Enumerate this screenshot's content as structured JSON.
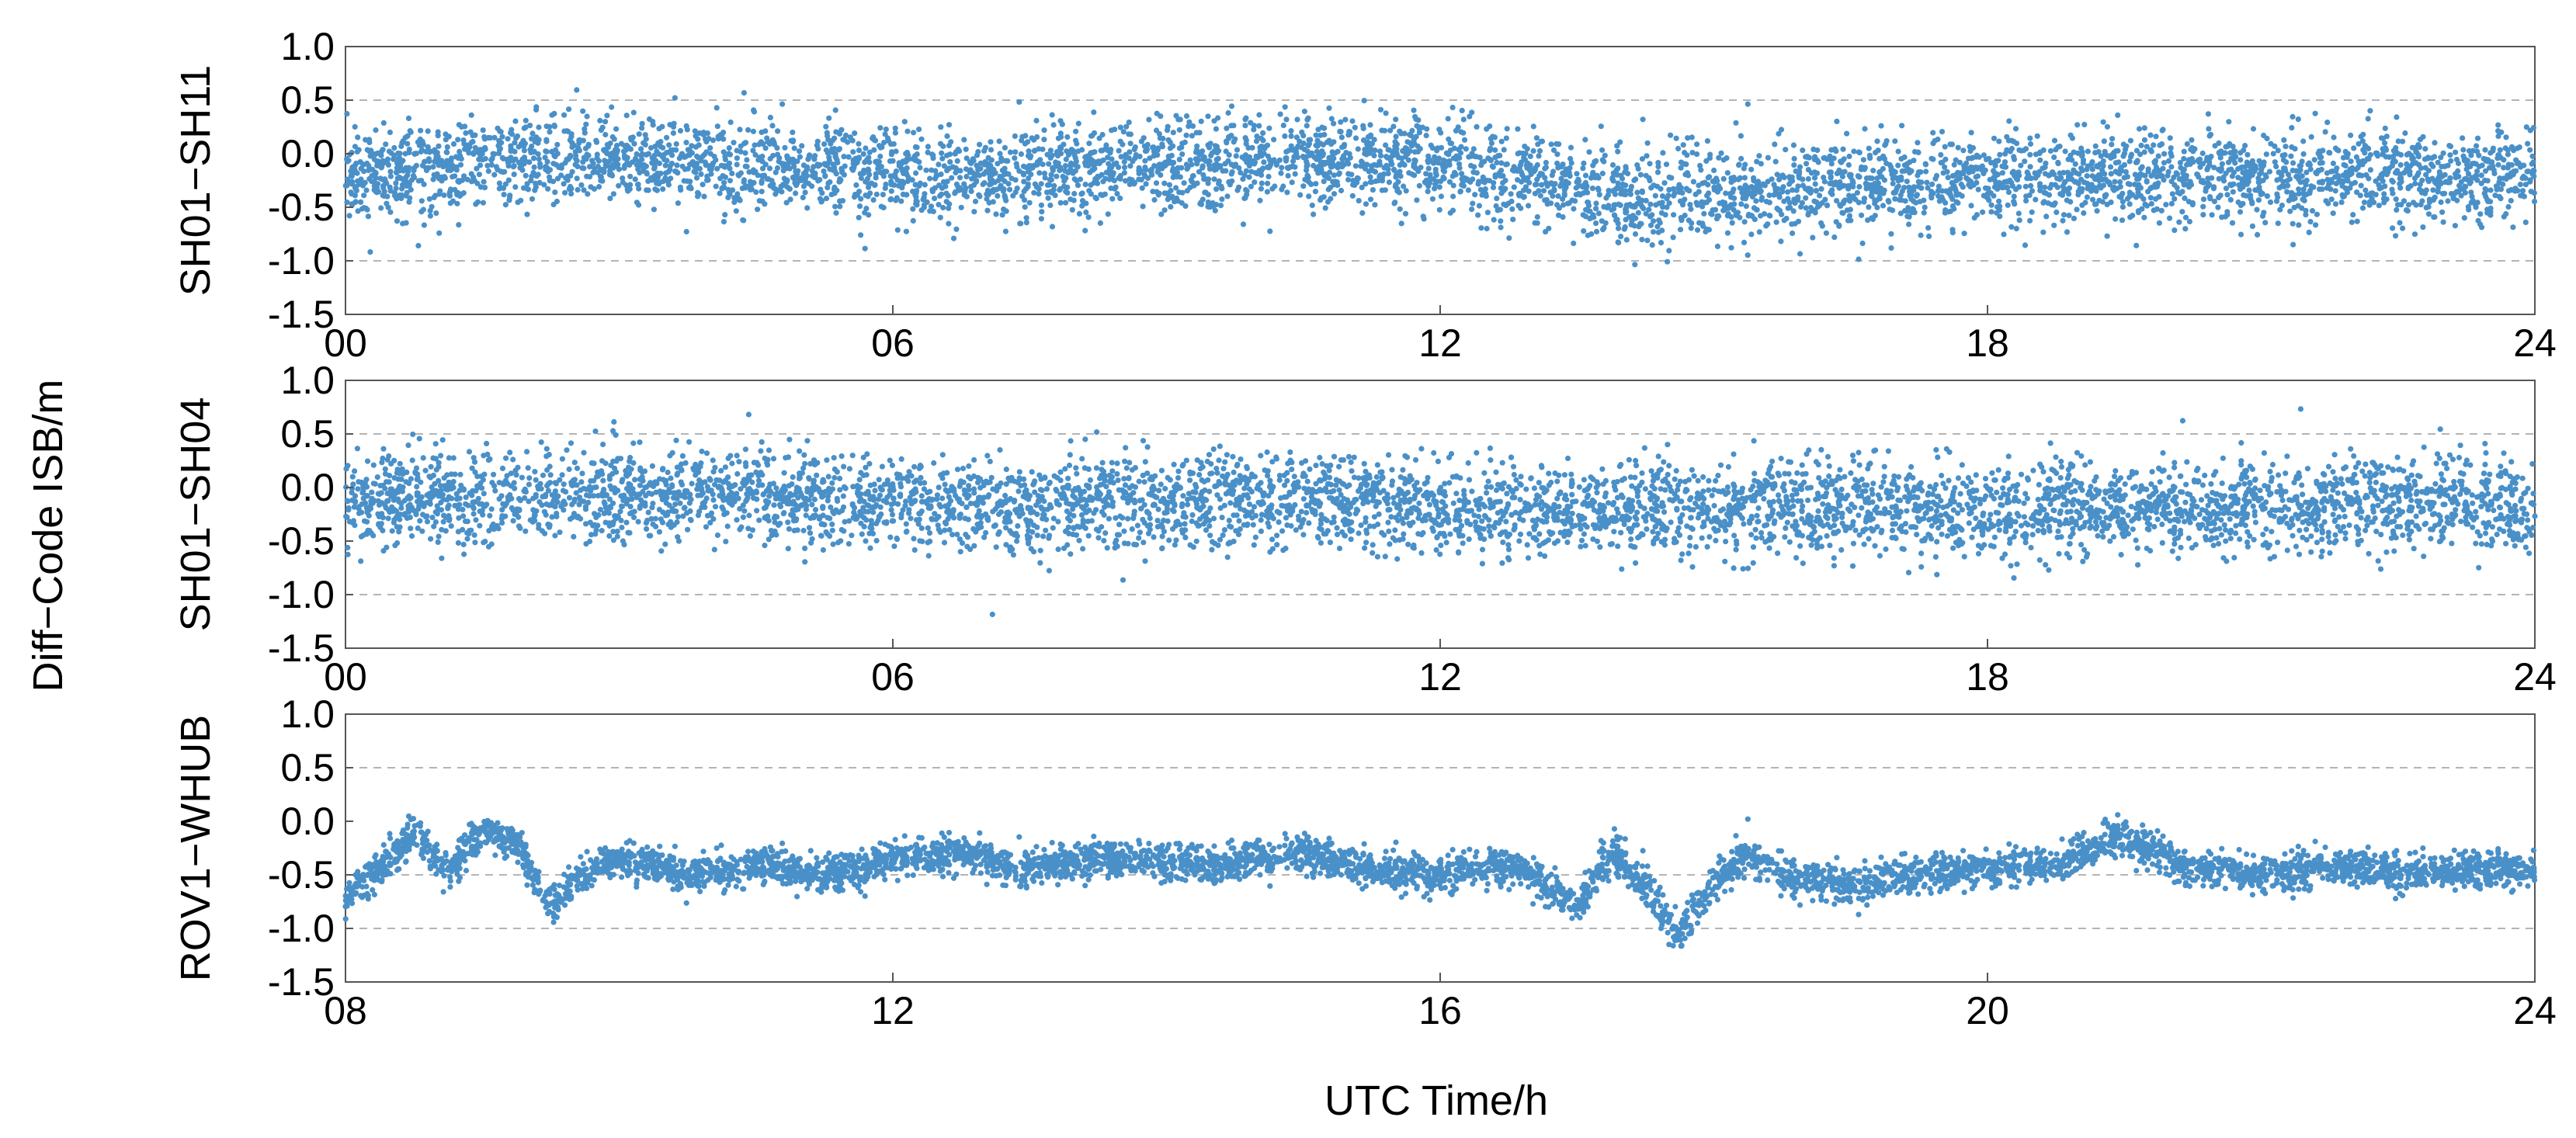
{
  "figure": {
    "ylabel": "Diff−Code ISB/m",
    "xlabel": "UTC Time/h"
  },
  "colors": {
    "series": "#4a90c8",
    "grid": "#b4b4b4",
    "axis": "#555555"
  },
  "chart_data": [
    {
      "type": "scatter",
      "ylabel": "SH01−SH11",
      "xlim": [
        0,
        24
      ],
      "ylim": [
        -1.5,
        1.0
      ],
      "xtick_labels": [
        "00",
        "06",
        "12",
        "18",
        "24"
      ],
      "xtick_values": [
        0,
        6,
        12,
        18,
        24
      ],
      "ytick_labels": [
        "1.0",
        "0.5",
        "0.0",
        "-0.5",
        "-1.0",
        "-1.5"
      ],
      "ytick_values": [
        1.0,
        0.5,
        0.0,
        -0.5,
        -1.0,
        -1.5
      ],
      "grid_y": [
        0.5,
        -1.0
      ],
      "series": [
        {
          "x": [
            0,
            1,
            2,
            3,
            4,
            5,
            6,
            7,
            8,
            9,
            10,
            11,
            12,
            13,
            14,
            15,
            16,
            17,
            18,
            19,
            20,
            21,
            22,
            23,
            24
          ],
          "y": [
            -0.2,
            -0.15,
            -0.05,
            -0.05,
            -0.08,
            -0.12,
            -0.2,
            -0.25,
            -0.15,
            -0.12,
            -0.1,
            -0.05,
            -0.08,
            -0.25,
            -0.45,
            -0.35,
            -0.3,
            -0.28,
            -0.25,
            -0.22,
            -0.22,
            -0.2,
            -0.2,
            -0.22,
            -0.2
          ],
          "spread": 0.42
        }
      ]
    },
    {
      "type": "scatter",
      "ylabel": "SH01−SH04",
      "xlim": [
        0,
        24
      ],
      "ylim": [
        -1.5,
        1.0
      ],
      "xtick_labels": [
        "00",
        "06",
        "12",
        "18",
        "24"
      ],
      "xtick_values": [
        0,
        6,
        12,
        18,
        24
      ],
      "ytick_labels": [
        "1.0",
        "0.5",
        "0.0",
        "-0.5",
        "-1.0",
        "-1.5"
      ],
      "ytick_values": [
        1.0,
        0.5,
        0.0,
        -0.5,
        -1.0,
        -1.5
      ],
      "grid_y": [
        0.5,
        -1.0
      ],
      "series": [
        {
          "x": [
            0,
            1,
            2,
            3,
            4,
            5,
            6,
            7,
            8,
            9,
            10,
            11,
            12,
            13,
            14,
            15,
            16,
            17,
            18,
            19,
            20,
            21,
            22,
            23,
            24
          ],
          "y": [
            -0.15,
            -0.12,
            -0.1,
            -0.08,
            -0.05,
            -0.1,
            -0.15,
            -0.18,
            -0.15,
            -0.15,
            -0.12,
            -0.12,
            -0.2,
            -0.22,
            -0.2,
            -0.18,
            -0.15,
            -0.18,
            -0.2,
            -0.2,
            -0.18,
            -0.18,
            -0.15,
            -0.15,
            -0.18
          ],
          "spread": 0.42
        }
      ]
    },
    {
      "type": "scatter",
      "ylabel": "ROV1−WHUB",
      "xlim": [
        8,
        24
      ],
      "ylim": [
        -1.5,
        1.0
      ],
      "xtick_labels": [
        "08",
        "12",
        "16",
        "20",
        "24"
      ],
      "xtick_values": [
        8,
        12,
        16,
        20,
        24
      ],
      "ytick_labels": [
        "1.0",
        "0.5",
        "0.0",
        "-0.5",
        "-1.0",
        "-1.5"
      ],
      "ytick_values": [
        1.0,
        0.5,
        0.0,
        -0.5,
        -1.0,
        -1.5
      ],
      "grid_y": [
        0.5,
        -0.5,
        -1.0
      ],
      "series": [
        {
          "x": [
            8,
            8.25,
            8.5,
            8.75,
            9,
            9.25,
            9.5,
            9.75,
            10,
            10.5,
            11,
            11.5,
            12,
            12.5,
            13,
            13.5,
            14,
            14.5,
            15,
            15.5,
            16,
            16.5,
            17,
            17.25,
            17.5,
            17.75,
            18,
            18.25,
            18.5,
            19,
            19.5,
            20,
            20.5,
            21,
            21.5,
            22,
            22.5,
            23,
            23.5,
            24
          ],
          "y": [
            -0.7,
            -0.45,
            -0.1,
            -0.45,
            -0.1,
            -0.2,
            -0.8,
            -0.45,
            -0.35,
            -0.5,
            -0.4,
            -0.5,
            -0.35,
            -0.3,
            -0.45,
            -0.35,
            -0.4,
            -0.4,
            -0.3,
            -0.45,
            -0.5,
            -0.4,
            -0.8,
            -0.3,
            -0.6,
            -1.1,
            -0.55,
            -0.3,
            -0.5,
            -0.6,
            -0.5,
            -0.45,
            -0.4,
            -0.15,
            -0.45,
            -0.5,
            -0.4,
            -0.5,
            -0.45,
            -0.45
          ],
          "spread": 0.17
        }
      ]
    }
  ]
}
